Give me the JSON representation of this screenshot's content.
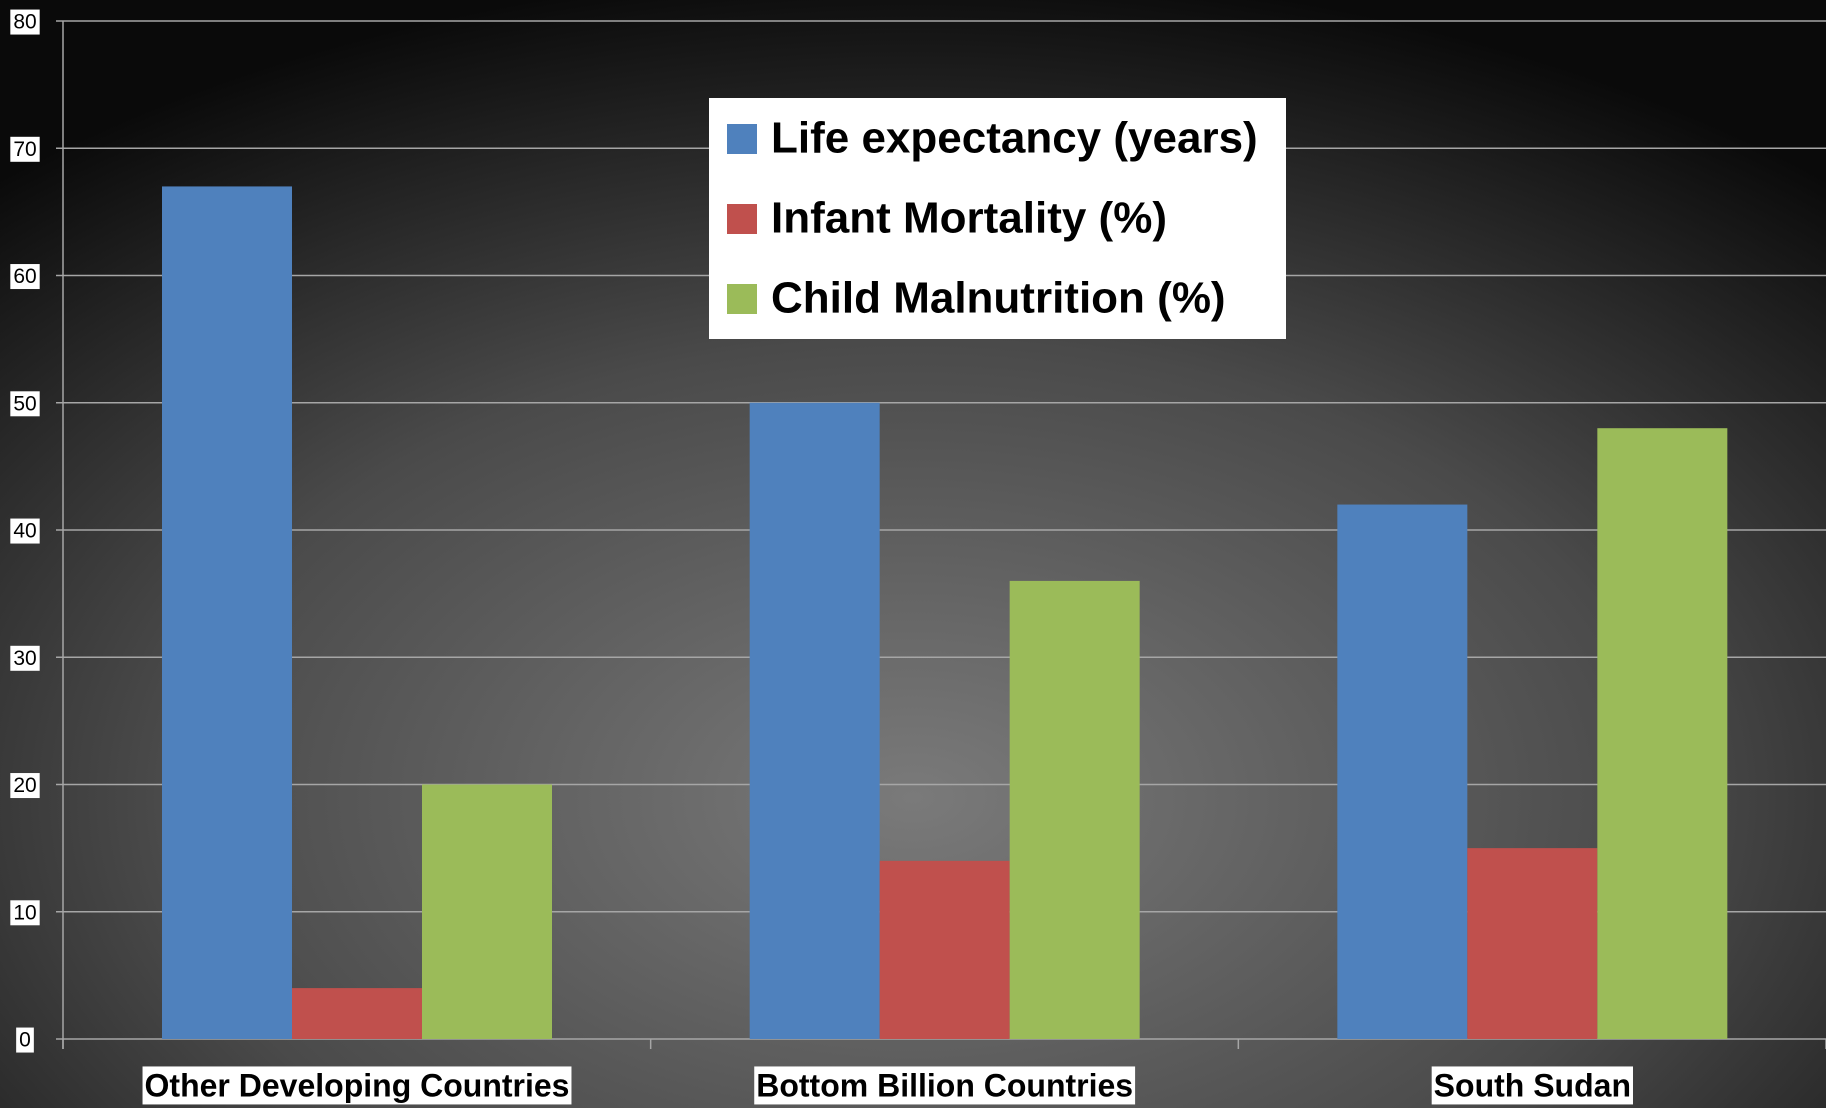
{
  "chart_data": {
    "type": "bar",
    "categories": [
      "Other Developing Countries",
      "Bottom Billion Countries",
      "South Sudan"
    ],
    "series": [
      {
        "name": "Life expectancy (years)",
        "color": "#4f81bd",
        "values": [
          67,
          50,
          42
        ]
      },
      {
        "name": "Infant Mortality (%)",
        "color": "#c0504d",
        "values": [
          4,
          14,
          15
        ]
      },
      {
        "name": "Child Malnutrition (%)",
        "color": "#9bbb59",
        "values": [
          20,
          36,
          48
        ]
      }
    ],
    "ylim": [
      0,
      80
    ],
    "yticks": [
      0,
      10,
      20,
      30,
      40,
      50,
      60,
      70,
      80
    ],
    "grid": true
  }
}
